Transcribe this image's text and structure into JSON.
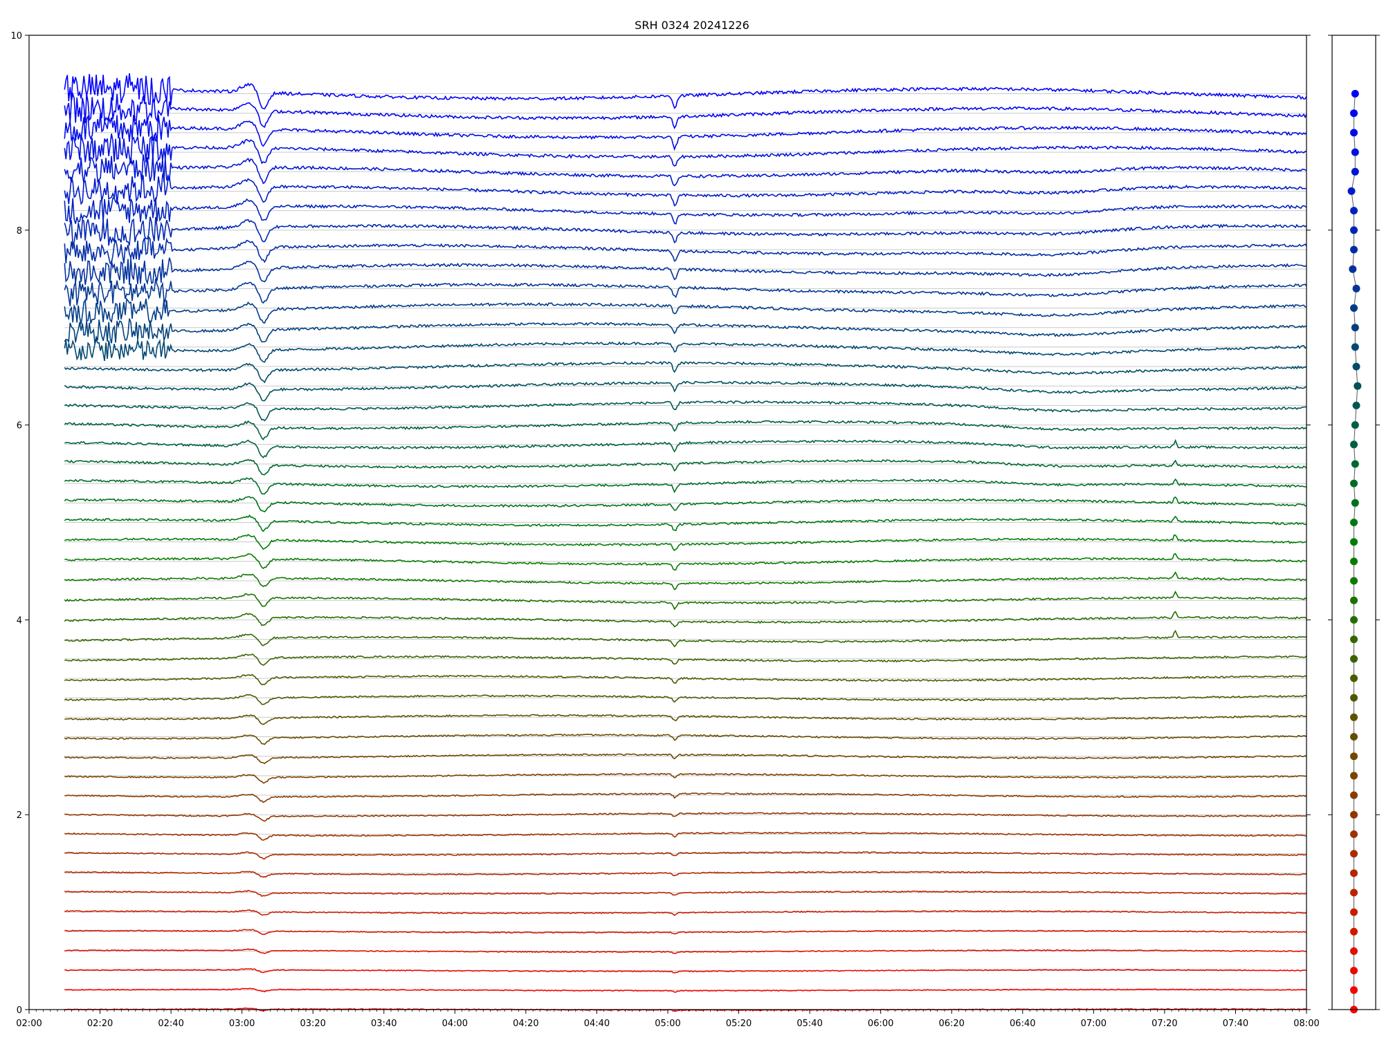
{
  "chart_data": [
    {
      "type": "line",
      "title": "SRH 0324 20241226",
      "xlabel": "",
      "ylabel": "",
      "xlim": [
        "02:00",
        "08:00"
      ],
      "ylim": [
        0,
        10
      ],
      "x_ticks": [
        "02:00",
        "02:20",
        "02:40",
        "03:00",
        "03:20",
        "03:40",
        "04:00",
        "04:20",
        "04:40",
        "05:00",
        "05:20",
        "05:40",
        "06:00",
        "06:20",
        "06:40",
        "07:00",
        "07:20",
        "07:40",
        "08:00"
      ],
      "y_ticks": [
        "0",
        "2",
        "4",
        "6",
        "8"
      ],
      "y_top_tick": "10",
      "data_start": "02:10",
      "data_end": "08:00",
      "series_count": 48,
      "series_spacing": 0.2,
      "baselines": [
        0.0,
        0.2,
        0.4,
        0.6,
        0.8,
        1.0,
        1.2,
        1.4,
        1.6,
        1.8,
        2.0,
        2.2,
        2.4,
        2.6,
        2.8,
        3.0,
        3.2,
        3.4,
        3.6,
        3.8,
        4.0,
        4.2,
        4.4,
        4.6,
        4.8,
        5.0,
        5.2,
        5.4,
        5.6,
        5.8,
        6.0,
        6.2,
        6.4,
        6.6,
        6.8,
        7.0,
        7.2,
        7.4,
        7.6,
        7.8,
        8.0,
        8.2,
        8.4,
        8.6,
        8.8,
        9.0,
        9.2,
        9.4
      ],
      "color_gradient": [
        "#ff0000",
        "#008000",
        "#0000ff"
      ],
      "grid": "horizontal at each series baseline",
      "events": [
        {
          "time": "03:06",
          "note": "sharp dip in most channels"
        },
        {
          "time": "05:02",
          "note": "sharp dip in most channels"
        },
        {
          "time": "07:23",
          "note": "small spike in mid channels"
        }
      ]
    },
    {
      "type": "scatter",
      "xlabel": "",
      "ylabel": "",
      "ylim": [
        0,
        10
      ],
      "points_y": [
        0.0,
        0.2,
        0.4,
        0.6,
        0.8,
        1.0,
        1.2,
        1.4,
        1.6,
        1.8,
        2.0,
        2.2,
        2.4,
        2.6,
        2.8,
        3.0,
        3.2,
        3.4,
        3.6,
        3.8,
        4.0,
        4.2,
        4.4,
        4.6,
        4.8,
        5.0,
        5.2,
        5.4,
        5.6,
        5.8,
        6.0,
        6.2,
        6.4,
        6.6,
        6.8,
        7.0,
        7.2,
        7.4,
        7.6,
        7.8,
        8.0,
        8.2,
        8.4,
        8.6,
        8.8,
        9.0,
        9.2,
        9.4
      ],
      "points_x": [
        0.0,
        0.0,
        0.0,
        0.0,
        0.0,
        0.0,
        0.0,
        0.0,
        0.0,
        0.0,
        0.0,
        0.0,
        0.0,
        0.0,
        0.0,
        0.0,
        0.0,
        0.0,
        0.0,
        0.0,
        0.0,
        0.0,
        0.0,
        0.0,
        0.0,
        0.0,
        0.1,
        0.0,
        0.1,
        0.0,
        0.1,
        0.2,
        0.3,
        0.2,
        0.1,
        0.1,
        0.0,
        0.2,
        -0.1,
        0.0,
        0.0,
        0.0,
        -0.2,
        0.1,
        0.1,
        0.0,
        0.0,
        0.1
      ],
      "xlim": [
        -0.9,
        0.9
      ]
    }
  ]
}
